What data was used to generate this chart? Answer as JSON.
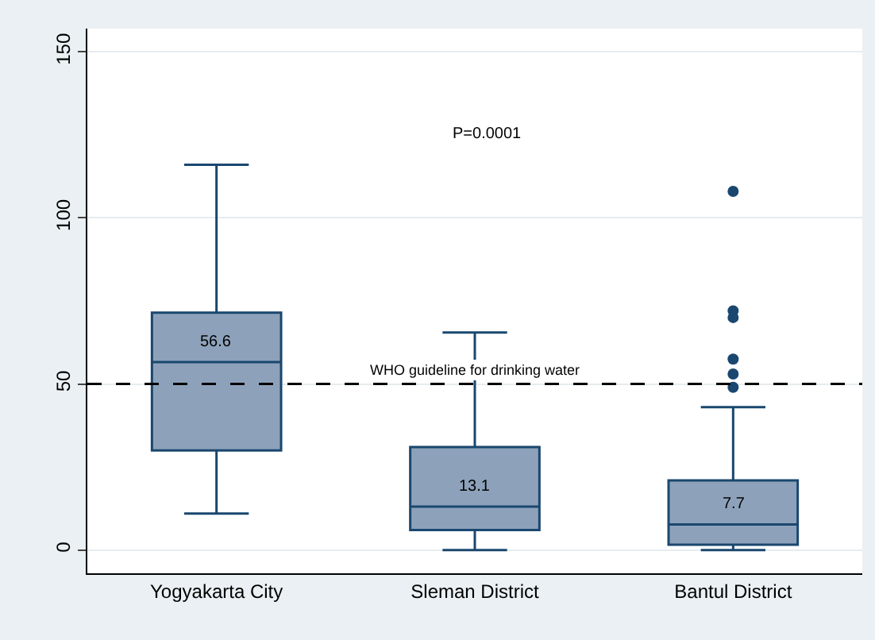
{
  "chart_data": {
    "type": "box",
    "categories": [
      "Yogyakarta City",
      "Sleman District",
      "Bantul District"
    ],
    "boxes": [
      {
        "low": 11,
        "q1": 30,
        "median": 56.6,
        "q3": 71.5,
        "high": 116
      },
      {
        "low": 0,
        "q1": 6,
        "median": 13.1,
        "q3": 31,
        "high": 65.5
      },
      {
        "low": 0,
        "q1": 1.6,
        "median": 7.7,
        "q3": 21,
        "high": 43,
        "outliers": [
          108,
          72,
          70,
          57.5,
          53,
          49
        ]
      }
    ],
    "color": "#8da2ba",
    "ylim": [
      -7,
      157
    ],
    "yticks": [
      0,
      50,
      100,
      150
    ],
    "grid": "y",
    "ref_lines": [
      {
        "axis": "y",
        "value": 50,
        "label": "WHO guideline for drinking water",
        "color": "#000000",
        "line_style": "dashed"
      }
    ],
    "annotations": [
      {
        "text": "56.6",
        "x": "Yogyakarta City",
        "y": 56.6
      },
      {
        "text": "13.1",
        "x": "Sleman District",
        "y": 13.1
      },
      {
        "text": "7.7",
        "x": "Bantul District",
        "y": 7.7
      },
      "P=0.0001"
    ]
  }
}
